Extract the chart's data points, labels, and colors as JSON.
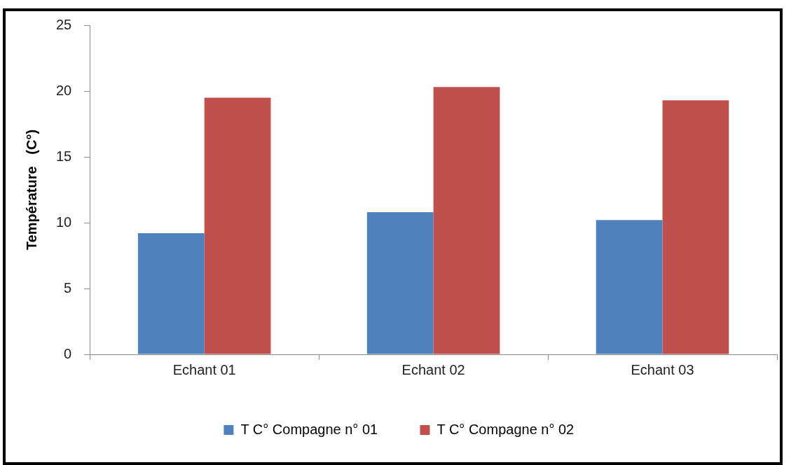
{
  "chart_data": {
    "type": "bar",
    "ylabel": "Température   (C°)",
    "categories": [
      "Echant 01",
      "Echant 02",
      "Echant 03"
    ],
    "series": [
      {
        "name": "T C° Compagne n° 01",
        "color": "#4f81bd",
        "values": [
          9.2,
          10.8,
          10.2
        ]
      },
      {
        "name": "T C° Compagne n° 02",
        "color": "#c0504d",
        "values": [
          19.5,
          20.3,
          19.3
        ]
      }
    ],
    "ylim": [
      0,
      25
    ],
    "yticks": [
      0,
      5,
      10,
      15,
      20,
      25
    ],
    "grid": false,
    "legend": "bottom"
  }
}
